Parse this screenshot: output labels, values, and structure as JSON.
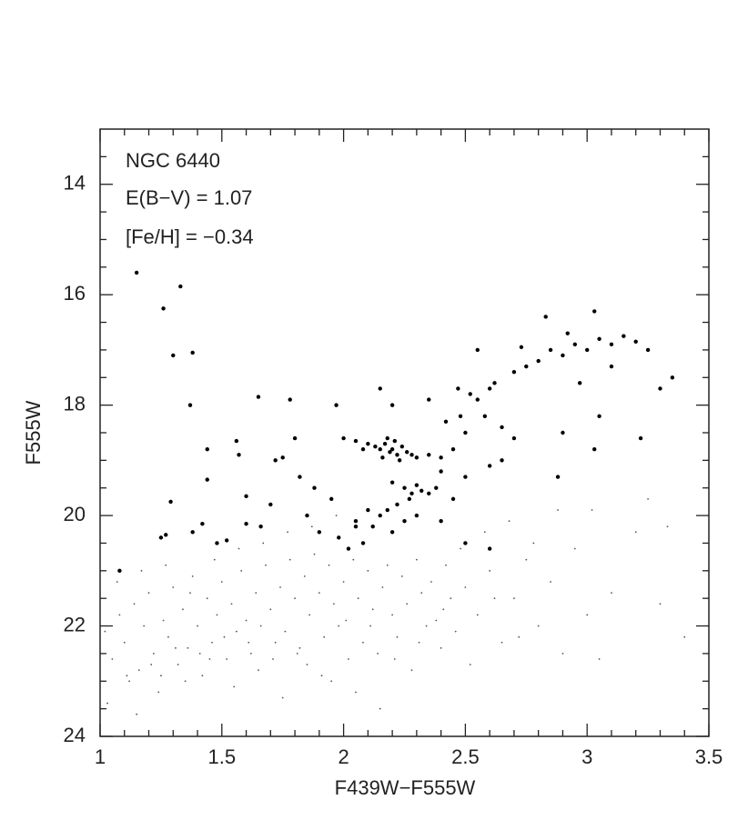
{
  "chart_data": {
    "type": "scatter",
    "annotations": [
      "NGC 6440",
      "E(B−V) = 1.07",
      "[Fe/H] = −0.34"
    ],
    "x_label": "F439W−F555W",
    "y_label": "F555W",
    "xlim": [
      1,
      3.5
    ],
    "ylim": [
      24,
      13
    ],
    "xticks": [
      1,
      1.5,
      2,
      2.5,
      3,
      3.5
    ],
    "yticks": [
      14,
      16,
      18,
      20,
      22,
      24
    ],
    "xminorticks": [
      1.1,
      1.2,
      1.3,
      1.4,
      1.6,
      1.7,
      1.8,
      1.9,
      2.1,
      2.2,
      2.3,
      2.4,
      2.6,
      2.7,
      2.8,
      2.9,
      3.1,
      3.2,
      3.3,
      3.4
    ],
    "yminorticks": [
      13.5,
      14.5,
      15,
      15.5,
      16.5,
      17,
      17.5,
      18.5,
      19,
      19.5,
      20.5,
      21,
      21.5,
      22.5,
      23,
      23.5
    ],
    "series": [
      {
        "color": "#000000",
        "marker_size": 2.2,
        "x": [
          1.15,
          1.26,
          1.33,
          1.3,
          1.38,
          1.37,
          1.65,
          1.78,
          1.97,
          1.44,
          1.44,
          1.29,
          1.25,
          1.27,
          1.08,
          1.38,
          1.42,
          1.56,
          1.57,
          1.48,
          1.52,
          1.6,
          1.66,
          1.72,
          1.75,
          1.8,
          1.82,
          1.6,
          1.7,
          1.85,
          1.9,
          1.88,
          1.95,
          1.98,
          2.02,
          2.05,
          2.08,
          2.1,
          2.1,
          2.13,
          2.15,
          2.17,
          2.19,
          2.2,
          2.22,
          2.24,
          2.26,
          2.28,
          2.3,
          2.18,
          2.21,
          2.16,
          2.23,
          2.0,
          2.05,
          2.08,
          2.35,
          2.4,
          2.2,
          2.25,
          2.28,
          2.3,
          2.32,
          2.27,
          2.22,
          2.18,
          2.15,
          2.35,
          2.38,
          2.12,
          2.2,
          2.25,
          2.3,
          2.05,
          2.4,
          2.45,
          2.5,
          2.48,
          2.52,
          2.55,
          2.58,
          2.6,
          2.62,
          2.65,
          2.7,
          2.75,
          2.8,
          2.85,
          2.9,
          2.95,
          3.0,
          3.05,
          3.1,
          3.15,
          3.2,
          3.25,
          3.3,
          3.35,
          2.83,
          3.03,
          2.55,
          2.7,
          2.6,
          2.5,
          2.45,
          2.4,
          2.9,
          3.03,
          3.22,
          2.88,
          2.65,
          2.42,
          2.35,
          2.47,
          2.73,
          2.92,
          3.05,
          2.97,
          3.1,
          2.6,
          2.5,
          2.15,
          2.2
        ],
        "y": [
          15.6,
          16.25,
          15.85,
          17.1,
          17.05,
          18,
          17.85,
          17.9,
          18,
          18.8,
          19.35,
          19.75,
          20.4,
          20.35,
          21,
          20.3,
          20.15,
          18.65,
          18.9,
          20.5,
          20.45,
          20.15,
          20.2,
          19,
          18.95,
          18.6,
          19.3,
          19.65,
          19.8,
          20,
          20.3,
          19.5,
          19.7,
          20.4,
          20.6,
          20.2,
          20.5,
          19.9,
          18.7,
          18.75,
          18.8,
          18.7,
          18.85,
          18.8,
          18.9,
          18.75,
          18.85,
          18.9,
          18.95,
          18.6,
          18.65,
          18.95,
          19,
          18.6,
          18.65,
          18.8,
          18.9,
          18.95,
          19.4,
          19.5,
          19.6,
          19.45,
          19.55,
          19.7,
          19.8,
          19.9,
          20,
          19.6,
          19.5,
          20.2,
          20.3,
          20.1,
          20,
          20.1,
          19.2,
          18.8,
          18.5,
          18.2,
          17.8,
          17.9,
          18.2,
          17.7,
          17.6,
          18.4,
          17.4,
          17.3,
          17.2,
          17,
          17.1,
          16.9,
          17,
          16.8,
          16.9,
          16.75,
          16.85,
          17,
          17.7,
          17.5,
          16.4,
          16.3,
          17,
          18.6,
          19.1,
          19.3,
          19.7,
          20.1,
          18.5,
          18.8,
          18.6,
          19.3,
          19,
          18.3,
          17.9,
          17.7,
          16.95,
          16.7,
          18.2,
          17.6,
          17.3,
          20.6,
          20.5,
          17.7,
          18
        ]
      },
      {
        "color": "#555555",
        "marker_size": 0.9,
        "x": [
          1.02,
          1.05,
          1.08,
          1.1,
          1.12,
          1.14,
          1.16,
          1.18,
          1.2,
          1.22,
          1.24,
          1.26,
          1.28,
          1.3,
          1.32,
          1.34,
          1.36,
          1.38,
          1.4,
          1.42,
          1.44,
          1.46,
          1.48,
          1.5,
          1.52,
          1.54,
          1.56,
          1.58,
          1.6,
          1.62,
          1.64,
          1.66,
          1.68,
          1.7,
          1.72,
          1.74,
          1.76,
          1.78,
          1.8,
          1.82,
          1.84,
          1.86,
          1.88,
          1.9,
          1.92,
          1.94,
          1.96,
          1.98,
          2.0,
          2.02,
          2.04,
          2.06,
          2.08,
          2.1,
          2.12,
          2.14,
          2.16,
          2.18,
          2.2,
          2.22,
          2.24,
          2.26,
          2.28,
          2.3,
          2.32,
          2.34,
          2.36,
          2.38,
          2.4,
          2.42,
          2.44,
          2.46,
          2.48,
          2.5,
          2.55,
          2.6,
          2.65,
          2.7,
          2.75,
          2.8,
          2.85,
          2.9,
          2.95,
          3.0,
          3.05,
          3.1,
          3.2,
          3.3,
          3.4,
          1.03,
          1.15,
          1.25,
          1.35,
          1.45,
          1.55,
          1.65,
          1.75,
          1.85,
          1.95,
          2.05,
          2.15,
          1.07,
          1.17,
          1.27,
          1.37,
          1.47,
          1.57,
          1.67,
          1.77,
          1.87,
          1.97,
          1.11,
          1.21,
          1.31,
          1.41,
          1.51,
          1.61,
          1.71,
          1.81,
          1.91,
          2.01,
          2.11,
          2.21,
          2.31,
          2.41,
          2.52,
          2.62,
          2.72,
          2.58,
          2.68,
          2.78,
          2.88,
          3.02,
          3.25,
          3.33
        ],
        "y": [
          22.1,
          22.6,
          21.8,
          22.3,
          23,
          21.6,
          22.8,
          22,
          21.4,
          22.5,
          23.2,
          21.9,
          22.2,
          21.3,
          22.7,
          21.7,
          22.4,
          21.1,
          22,
          22.9,
          21.5,
          22.3,
          21.8,
          21.2,
          22.6,
          21.6,
          22.1,
          21,
          21.9,
          22.5,
          21.4,
          22,
          20.9,
          21.7,
          22.3,
          21.3,
          22.1,
          20.8,
          21.5,
          22.4,
          21.1,
          21.8,
          20.7,
          21.4,
          22.2,
          20.9,
          21.6,
          22,
          21.2,
          22.6,
          20.8,
          21.5,
          22.3,
          21,
          21.7,
          22.5,
          21.3,
          20.9,
          21.8,
          22.2,
          21.1,
          21.6,
          22.8,
          20.8,
          21.4,
          22,
          21.2,
          21.9,
          22.4,
          20.9,
          21.5,
          22.1,
          20.6,
          21.3,
          21.8,
          21,
          22.3,
          21.5,
          20.8,
          22,
          21.2,
          22.5,
          20.6,
          21.8,
          22.6,
          21.4,
          20.3,
          21.6,
          22.2,
          23.4,
          23.6,
          22.9,
          23,
          22.6,
          23.1,
          22.8,
          23.3,
          22.7,
          23,
          23.2,
          23.5,
          21.2,
          21,
          20.9,
          21.4,
          20.8,
          20.6,
          20.5,
          20.3,
          20.2,
          20,
          22.9,
          22.7,
          22.4,
          22.5,
          22.2,
          22.3,
          22.6,
          22.5,
          22.9,
          21.9,
          22,
          22.6,
          22.3,
          21.7,
          22.7,
          21.5,
          22.2,
          20.3,
          20.1,
          20.5,
          19.9,
          19.9,
          19.7,
          20.2
        ]
      }
    ]
  }
}
